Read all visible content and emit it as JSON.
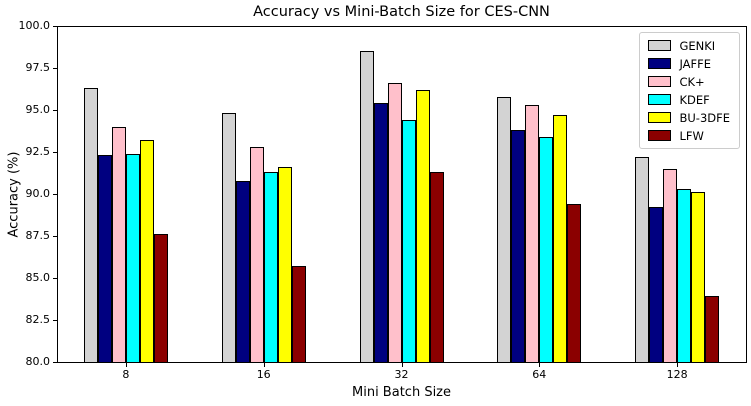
{
  "chart_data": {
    "type": "bar",
    "title": "Accuracy vs Mini-Batch Size for CES-CNN",
    "xlabel": "Mini Batch Size",
    "ylabel": "Accuracy (%)",
    "categories": [
      "8",
      "16",
      "32",
      "64",
      "128"
    ],
    "series": [
      {
        "name": "GENKI",
        "color": "#d3d3d3",
        "values": [
          96.3,
          94.8,
          98.5,
          95.8,
          92.2
        ]
      },
      {
        "name": "JAFFE",
        "color": "#000080",
        "values": [
          92.3,
          90.8,
          95.4,
          93.8,
          89.2
        ]
      },
      {
        "name": "CK+",
        "color": "#ffc0cb",
        "values": [
          94.0,
          92.8,
          96.6,
          95.3,
          91.5
        ]
      },
      {
        "name": "KDEF",
        "color": "#00ffff",
        "values": [
          92.4,
          91.3,
          94.4,
          93.4,
          90.3
        ]
      },
      {
        "name": "BU-3DFE",
        "color": "#ffff00",
        "values": [
          93.2,
          91.6,
          96.2,
          94.7,
          90.1
        ]
      },
      {
        "name": "LFW",
        "color": "#8b0000",
        "values": [
          87.6,
          85.7,
          91.3,
          89.4,
          83.9
        ]
      }
    ],
    "ylim": [
      80.0,
      100.0
    ],
    "y_ticks": [
      100.0,
      97.5,
      95.0,
      92.5,
      90.0,
      87.5,
      85.0,
      82.5,
      80.0
    ],
    "bar_edge_color": "#000000",
    "legend_position": "upper right",
    "grid": false
  }
}
